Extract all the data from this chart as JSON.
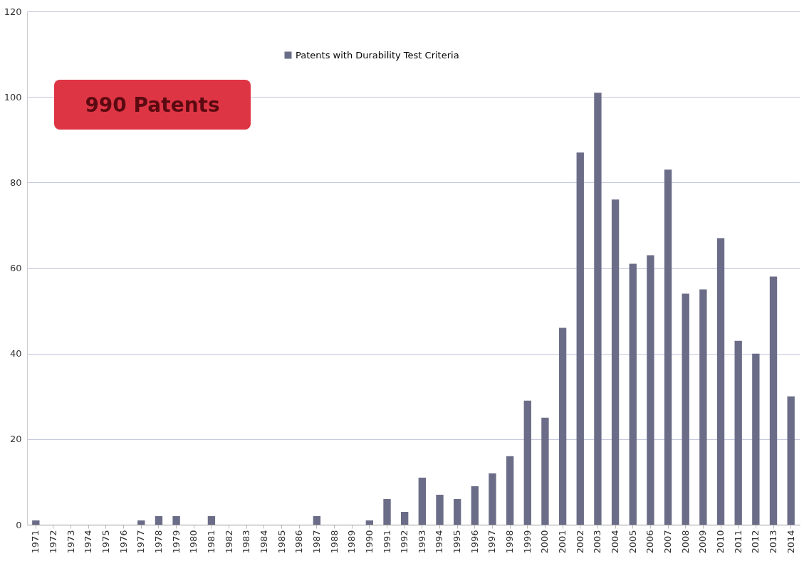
{
  "chart_data": {
    "type": "bar",
    "categories": [
      "1971",
      "1972",
      "1973",
      "1974",
      "1975",
      "1976",
      "1977",
      "1978",
      "1979",
      "1980",
      "1981",
      "1982",
      "1983",
      "1984",
      "1985",
      "1986",
      "1987",
      "1988",
      "1989",
      "1990",
      "1991",
      "1992",
      "1993",
      "1994",
      "1995",
      "1996",
      "1997",
      "1998",
      "1999",
      "2000",
      "2001",
      "2002",
      "2003",
      "2004",
      "2005",
      "2006",
      "2007",
      "2008",
      "2009",
      "2010",
      "2011",
      "2012",
      "2013",
      "2014"
    ],
    "series": [
      {
        "name": "Patents with Durability Test Criteria",
        "color": "#6b6d88",
        "values": [
          1,
          0,
          0,
          0,
          0,
          0,
          1,
          2,
          2,
          0,
          2,
          0,
          0,
          0,
          0,
          0,
          2,
          0,
          0,
          1,
          6,
          3,
          11,
          7,
          6,
          9,
          12,
          16,
          29,
          25,
          46,
          87,
          101,
          76,
          61,
          63,
          83,
          54,
          55,
          67,
          43,
          40,
          58,
          30
        ]
      }
    ],
    "ylim": [
      0,
      120
    ],
    "yticks": [
      0,
      20,
      40,
      60,
      80,
      100,
      120
    ],
    "grid": "y",
    "legend": "top",
    "annotations": [
      "990 Patents"
    ]
  }
}
